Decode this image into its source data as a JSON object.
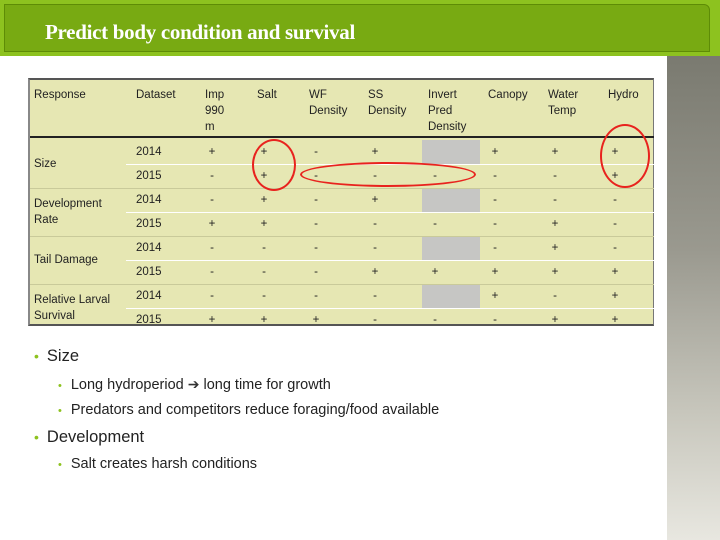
{
  "slide": {
    "title": "Predict body condition and survival"
  },
  "table": {
    "headers": {
      "response": "Response",
      "dataset": "Dataset",
      "imp990m": [
        "Imp",
        "990",
        "m"
      ],
      "salt": "Salt",
      "wf": [
        "WF",
        "Density"
      ],
      "ss": [
        "SS",
        "Density"
      ],
      "invert": [
        "Invert",
        "Pred",
        "Density"
      ],
      "canopy": "Canopy",
      "water": [
        "Water",
        "Temp"
      ],
      "hydro": "Hydro"
    },
    "groups": [
      {
        "response": [
          "Size"
        ],
        "rows": [
          {
            "year": "2014",
            "imp": "+",
            "salt": "+",
            "wf": "-",
            "ss": "+",
            "invert": "",
            "canopy": "+",
            "water": "+",
            "hydro": "+"
          },
          {
            "year": "2015",
            "imp": "-",
            "salt": "+",
            "wf": "-",
            "ss": "-",
            "invert": "-",
            "canopy": "-",
            "water": "-",
            "hydro": "+"
          }
        ]
      },
      {
        "response": [
          "Development",
          "Rate"
        ],
        "rows": [
          {
            "year": "2014",
            "imp": "-",
            "salt": "+",
            "wf": "-",
            "ss": "+",
            "invert": "",
            "canopy": "-",
            "water": "-",
            "hydro": "-"
          },
          {
            "year": "2015",
            "imp": "+",
            "salt": "+",
            "wf": "-",
            "ss": "-",
            "invert": "-",
            "canopy": "-",
            "water": "+",
            "hydro": "-"
          }
        ]
      },
      {
        "response": [
          "Tail Damage"
        ],
        "rows": [
          {
            "year": "2014",
            "imp": "-",
            "salt": "-",
            "wf": "-",
            "ss": "-",
            "invert": "",
            "canopy": "-",
            "water": "+",
            "hydro": "-"
          },
          {
            "year": "2015",
            "imp": "-",
            "salt": "-",
            "wf": "-",
            "ss": "+",
            "invert": "+",
            "canopy": "+",
            "water": "+",
            "hydro": "+"
          }
        ]
      },
      {
        "response": [
          "Relative Larval",
          "Survival"
        ],
        "rows": [
          {
            "year": "2014",
            "imp": "-",
            "salt": "-",
            "wf": "-",
            "ss": "-",
            "invert": "",
            "canopy": "+",
            "water": "-",
            "hydro": "+"
          },
          {
            "year": "2015",
            "imp": "+",
            "salt": "+",
            "wf": "+",
            "ss": "-",
            "invert": "-",
            "canopy": "-",
            "water": "+",
            "hydro": "+"
          }
        ]
      }
    ],
    "gray_cells_note_color": "#c6c6c4",
    "highlight_color": "#e8231e"
  },
  "bullets": {
    "size": {
      "label": "Size",
      "subs": [
        "Long hydroperiod",
        "long time for growth",
        "Predators and competitors reduce foraging/food available"
      ]
    },
    "development": {
      "label": "Development",
      "subs": [
        "Salt creates harsh conditions"
      ]
    }
  },
  "colors": {
    "accent": "#8dc21f",
    "title_bg": "#78aa12",
    "table_bg": "#e6e7b3"
  }
}
